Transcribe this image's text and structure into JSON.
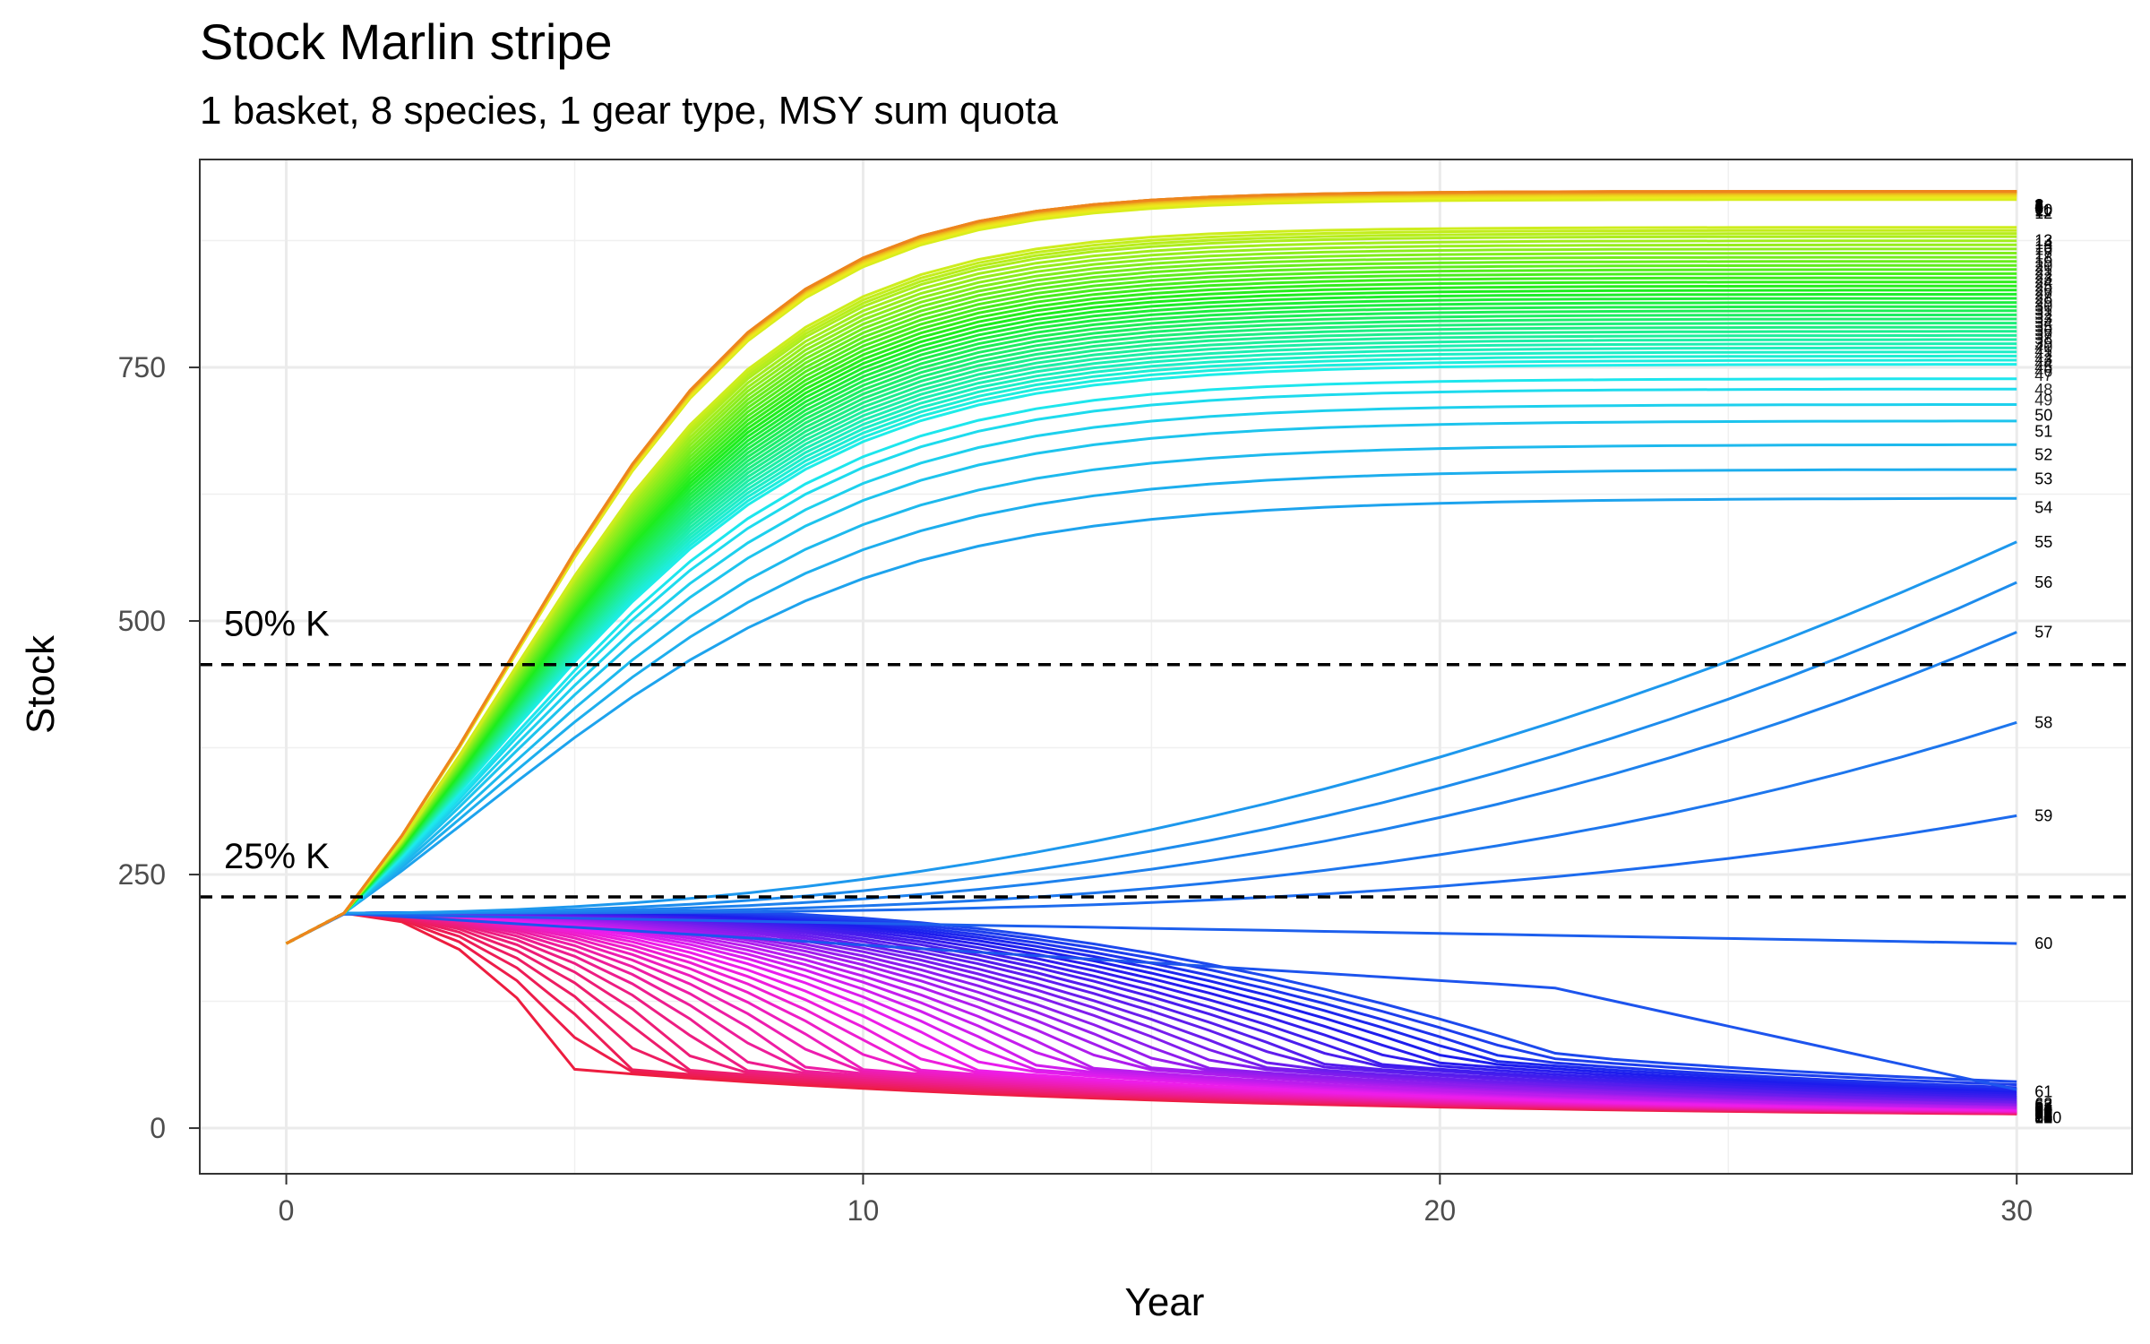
{
  "chart_data": {
    "type": "line",
    "title": "Stock Marlin stripe",
    "subtitle": "1 basket, 8 species, 1 gear type, MSY sum quota",
    "xlabel": "Year",
    "ylabel": "Stock",
    "xlim": [
      -1.5,
      32
    ],
    "ylim": [
      -45,
      955
    ],
    "x_ticks": [
      0,
      10,
      20,
      30
    ],
    "y_ticks": [
      0,
      250,
      500,
      750
    ],
    "grid": true,
    "legend": "none",
    "hlines": [
      {
        "label": "50% K",
        "y": 457
      },
      {
        "label": "25% K",
        "y": 228
      }
    ],
    "line_labels": {
      "61": "61",
      "60": "60",
      "59": "59",
      "58": "58",
      "57": "57",
      "56": "56",
      "55": "55",
      "54": "54",
      "53": "53",
      "52": "52",
      "51": "51",
      "50": "50",
      "49": "49",
      "48": "48",
      "47": "47",
      "46": "46",
      "45": "45",
      "44": "44",
      "43": "43",
      "42": "42",
      "41": "41",
      "40": "40",
      "39": "39",
      "38": "38",
      "37": "37",
      "36": "36",
      "35": "35",
      "34": "34",
      "33": "33",
      "32": "32",
      "31": "31",
      "30": "30",
      "29": "29",
      "28": "28",
      "27": "27",
      "26": "26",
      "25": "25",
      "24": "24",
      "23": "23",
      "22": "22",
      "21": "21",
      "20": "20",
      "19": "19",
      "18": "18",
      "17": "17",
      "16": "16",
      "15": "15",
      "14": "14",
      "13": "13",
      "12": "12",
      "11": "11",
      "10": "10",
      "9": "9",
      "8": "8",
      "7": "7",
      "6": "6",
      "5": "5",
      "4": "4",
      "3": "3",
      "2": "2",
      "1": "1",
      "62": "62",
      "63": "63",
      "64": "64",
      "65": "65",
      "66": "66",
      "67": "67",
      "68": "68",
      "69": "69",
      "70": "70",
      "71": "71",
      "72": "72",
      "73": "73",
      "74": "74",
      "75": "75",
      "76": "76",
      "77": "77",
      "78": "78",
      "79": "79",
      "80": "80",
      "81": "81",
      "82": "82",
      "83": "83",
      "84": "84",
      "85": "85",
      "86": "86",
      "87": "87",
      "88": "88",
      "89": "89",
      "90": "90",
      "91": "91",
      "92": "92",
      "93": "93",
      "94": "94",
      "95": "95",
      "96": "96",
      "97": "97",
      "98": "98",
      "99": "99",
      "100": "100"
    },
    "series_end_values": {
      "1": 910,
      "2": 910,
      "3": 910,
      "4": 909,
      "5": 909,
      "6": 908,
      "7": 908,
      "8": 907,
      "9": 906,
      "10": 905,
      "11": 904,
      "12": 902,
      "13": 875,
      "14": 872,
      "15": 869,
      "16": 866,
      "17": 862,
      "18": 858,
      "19": 854,
      "20": 850,
      "21": 846,
      "22": 842,
      "23": 838,
      "24": 834,
      "25": 830,
      "26": 826,
      "27": 822,
      "28": 818,
      "29": 814,
      "30": 810,
      "31": 806,
      "32": 802,
      "33": 798,
      "34": 794,
      "35": 790,
      "36": 786,
      "37": 782,
      "38": 778,
      "39": 774,
      "40": 770,
      "41": 766,
      "42": 762,
      "43": 758,
      "44": 754,
      "45": 750,
      "46": 746,
      "47": 742,
      "48": 728,
      "49": 718,
      "50": 703,
      "51": 687,
      "52": 664,
      "53": 640,
      "54": 612,
      "55": 578,
      "56": 538,
      "57": 489,
      "58": 400,
      "59": 308,
      "60": 182,
      "61": 36,
      "62": 24,
      "63": 22,
      "64": 20,
      "65": 19,
      "66": 18,
      "67": 17,
      "68": 16,
      "69": 15,
      "70": 15,
      "71": 14,
      "72": 14,
      "73": 13,
      "74": 13,
      "75": 13,
      "76": 12,
      "77": 12,
      "78": 12,
      "79": 12,
      "80": 11,
      "81": 11,
      "82": 11,
      "83": 11,
      "84": 11,
      "85": 10,
      "86": 10,
      "87": 10,
      "88": 10,
      "89": 10,
      "90": 10,
      "91": 10,
      "92": 10,
      "93": 10,
      "94": 10,
      "95": 10,
      "96": 10,
      "97": 10,
      "98": 10,
      "99": 10,
      "100": 10
    },
    "start_value": 182
  }
}
